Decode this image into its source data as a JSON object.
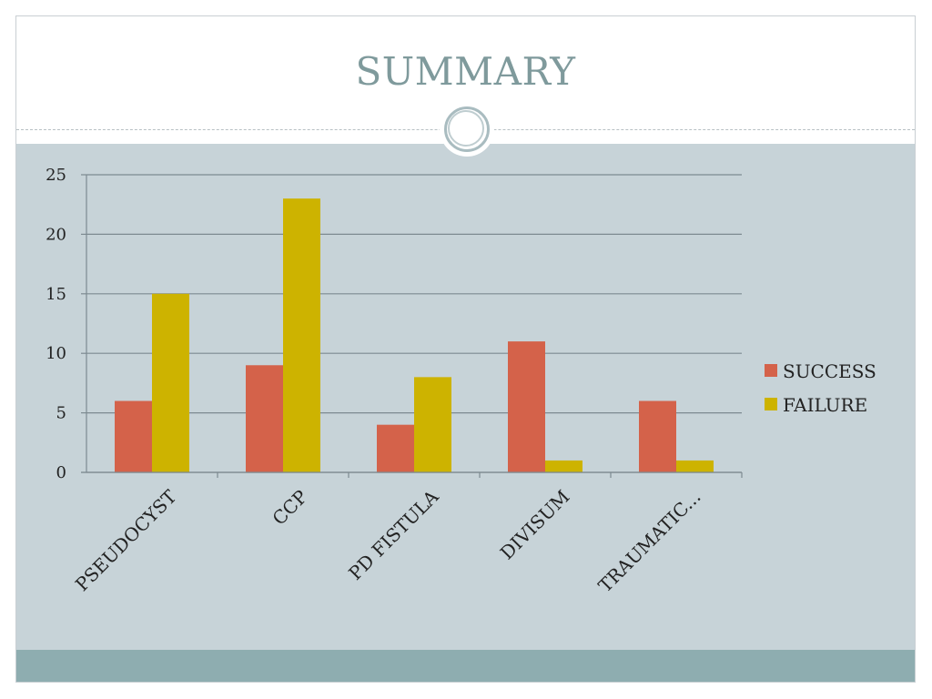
{
  "slide": {
    "title": "SUMMARY"
  },
  "colors": {
    "success": "#d4624a",
    "failure": "#cdb300",
    "background": "#c7d3d8",
    "footer": "#8eadb0",
    "title": "#7f9a9c"
  },
  "chart_data": {
    "type": "bar",
    "categories": [
      "PSEUDOCYST",
      "CCP",
      "PD FISTULA",
      "DIVISUM",
      "TRAUMATIC..."
    ],
    "series": [
      {
        "name": "SUCCESS",
        "values": [
          6,
          9,
          4,
          11,
          6
        ],
        "color": "#d4624a"
      },
      {
        "name": "FAILURE",
        "values": [
          15,
          23,
          8,
          1,
          1
        ],
        "color": "#cdb300"
      }
    ],
    "yticks": [
      0,
      5,
      10,
      15,
      20,
      25
    ],
    "ylim": [
      0,
      25
    ],
    "grid": true,
    "legend_position": "right",
    "xlabel_rotation": "diagonal"
  }
}
